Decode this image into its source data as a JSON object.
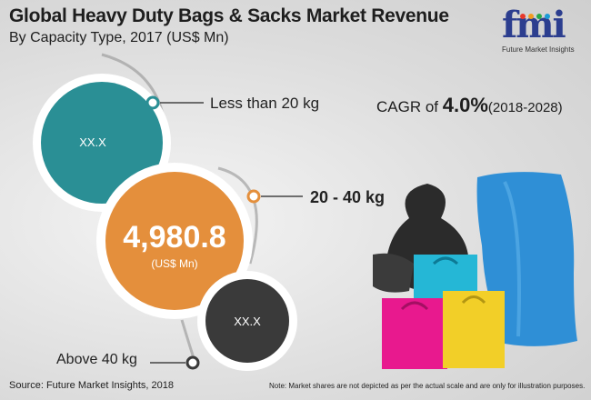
{
  "title": "Global Heavy Duty Bags & Sacks Market Revenue",
  "subtitle": "By Capacity Type, 2017 (US$ Mn)",
  "logo": {
    "mark": "fmi",
    "tagline": "Future Market Insights",
    "dot_colors": [
      "#e8392b",
      "#f29c1f",
      "#2aa84a",
      "#1a9bd7"
    ]
  },
  "cagr": {
    "prefix": "CAGR of ",
    "value": "4.0%",
    "period": "(2018-2028)"
  },
  "chart_data": {
    "type": "bubble",
    "categories": [
      "Less than 20 kg",
      "20 - 40 kg",
      "Above 40 kg"
    ],
    "values": [
      "XX.X",
      "4,980.8",
      "XX.X"
    ],
    "unit_label": "(US$ Mn)",
    "colors": [
      "#2a8f95",
      "#e48f3c",
      "#3a3a3a"
    ]
  },
  "footer": {
    "source": "Source: Future Market Insights, 2018",
    "note": "Note: Market shares are not depicted as per the actual scale and are only for illustration purposes."
  },
  "illustration": {
    "icon": "shopping-bags-illustration"
  }
}
